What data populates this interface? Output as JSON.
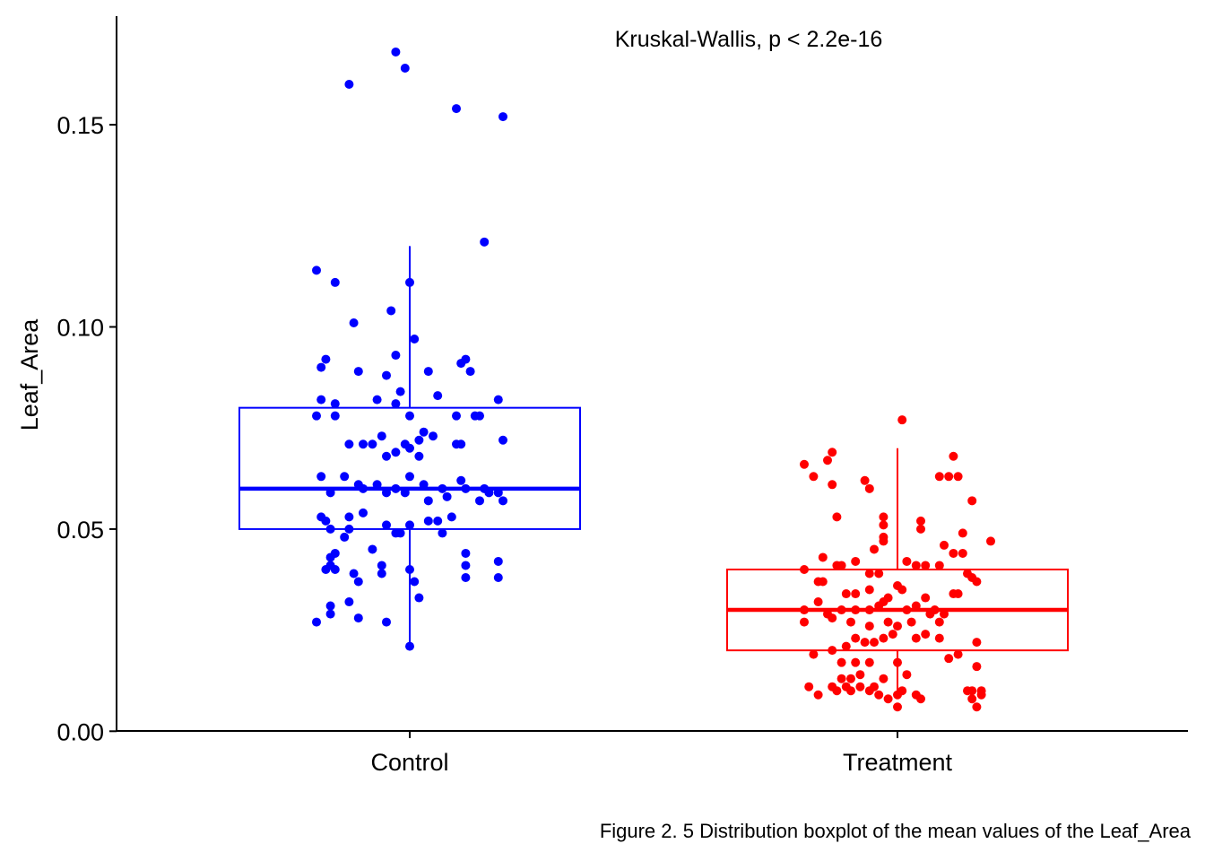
{
  "chart_data": {
    "type": "scatter",
    "subtype": "boxplot-with-jitter",
    "ylabel": "Leaf_Area",
    "xlabel": "",
    "ylim": [
      0.0,
      0.178
    ],
    "y_ticks": [
      0.0,
      0.05,
      0.1,
      0.15
    ],
    "y_tick_labels": [
      "0.00",
      "0.05",
      "0.10",
      "0.15"
    ],
    "categories": [
      "Control",
      "Treatment"
    ],
    "grid": false,
    "legend": "none",
    "annotation": "Kruskal-Wallis, p < 2.2e-16",
    "groups": [
      {
        "category": "Control",
        "color": "#0000FF",
        "box": {
          "whisker_low": 0.021,
          "q1": 0.05,
          "median": 0.06,
          "q3": 0.08,
          "whisker_high": 0.12
        },
        "points": [
          {
            "x": -0.2,
            "y": 0.114
          },
          {
            "x": -0.16,
            "y": 0.111
          },
          {
            "x": -0.12,
            "y": 0.101
          },
          {
            "x": 0.0,
            "y": 0.111
          },
          {
            "x": -0.04,
            "y": 0.104
          },
          {
            "x": -0.18,
            "y": 0.092
          },
          {
            "x": -0.19,
            "y": 0.09
          },
          {
            "x": -0.11,
            "y": 0.089
          },
          {
            "x": -0.05,
            "y": 0.088
          },
          {
            "x": -0.03,
            "y": 0.093
          },
          {
            "x": 0.01,
            "y": 0.097
          },
          {
            "x": 0.04,
            "y": 0.089
          },
          {
            "x": 0.11,
            "y": 0.091
          },
          {
            "x": 0.13,
            "y": 0.089
          },
          {
            "x": 0.12,
            "y": 0.092
          },
          {
            "x": -0.19,
            "y": 0.082
          },
          {
            "x": -0.16,
            "y": 0.081
          },
          {
            "x": -0.2,
            "y": 0.078
          },
          {
            "x": -0.16,
            "y": 0.078
          },
          {
            "x": -0.07,
            "y": 0.082
          },
          {
            "x": -0.03,
            "y": 0.081
          },
          {
            "x": 0.0,
            "y": 0.078
          },
          {
            "x": -0.02,
            "y": 0.084
          },
          {
            "x": 0.06,
            "y": 0.083
          },
          {
            "x": 0.1,
            "y": 0.078
          },
          {
            "x": 0.14,
            "y": 0.078
          },
          {
            "x": 0.15,
            "y": 0.078
          },
          {
            "x": 0.19,
            "y": 0.082
          },
          {
            "x": -0.13,
            "y": 0.071
          },
          {
            "x": -0.1,
            "y": 0.071
          },
          {
            "x": -0.08,
            "y": 0.071
          },
          {
            "x": -0.06,
            "y": 0.073
          },
          {
            "x": -0.05,
            "y": 0.068
          },
          {
            "x": -0.03,
            "y": 0.069
          },
          {
            "x": -0.01,
            "y": 0.071
          },
          {
            "x": 0.02,
            "y": 0.072
          },
          {
            "x": 0.03,
            "y": 0.074
          },
          {
            "x": 0.05,
            "y": 0.073
          },
          {
            "x": 0.0,
            "y": 0.07
          },
          {
            "x": 0.02,
            "y": 0.068
          },
          {
            "x": 0.1,
            "y": 0.071
          },
          {
            "x": 0.11,
            "y": 0.071
          },
          {
            "x": 0.2,
            "y": 0.072
          },
          {
            "x": -0.19,
            "y": 0.063
          },
          {
            "x": -0.14,
            "y": 0.063
          },
          {
            "x": -0.11,
            "y": 0.061
          },
          {
            "x": -0.17,
            "y": 0.059
          },
          {
            "x": -0.1,
            "y": 0.06
          },
          {
            "x": -0.07,
            "y": 0.061
          },
          {
            "x": -0.05,
            "y": 0.059
          },
          {
            "x": -0.03,
            "y": 0.06
          },
          {
            "x": -0.01,
            "y": 0.059
          },
          {
            "x": 0.0,
            "y": 0.063
          },
          {
            "x": 0.03,
            "y": 0.061
          },
          {
            "x": 0.07,
            "y": 0.06
          },
          {
            "x": 0.08,
            "y": 0.058
          },
          {
            "x": 0.04,
            "y": 0.057
          },
          {
            "x": 0.11,
            "y": 0.062
          },
          {
            "x": 0.12,
            "y": 0.06
          },
          {
            "x": 0.16,
            "y": 0.06
          },
          {
            "x": 0.17,
            "y": 0.059
          },
          {
            "x": 0.19,
            "y": 0.059
          },
          {
            "x": 0.15,
            "y": 0.057
          },
          {
            "x": 0.2,
            "y": 0.057
          },
          {
            "x": -0.19,
            "y": 0.053
          },
          {
            "x": -0.18,
            "y": 0.052
          },
          {
            "x": -0.13,
            "y": 0.053
          },
          {
            "x": -0.1,
            "y": 0.054
          },
          {
            "x": -0.17,
            "y": 0.05
          },
          {
            "x": -0.13,
            "y": 0.05
          },
          {
            "x": -0.14,
            "y": 0.048
          },
          {
            "x": -0.05,
            "y": 0.051
          },
          {
            "x": -0.02,
            "y": 0.049
          },
          {
            "x": 0.0,
            "y": 0.051
          },
          {
            "x": -0.03,
            "y": 0.049
          },
          {
            "x": 0.04,
            "y": 0.052
          },
          {
            "x": 0.06,
            "y": 0.052
          },
          {
            "x": 0.07,
            "y": 0.049
          },
          {
            "x": 0.09,
            "y": 0.053
          },
          {
            "x": -0.17,
            "y": 0.043
          },
          {
            "x": -0.16,
            "y": 0.044
          },
          {
            "x": -0.17,
            "y": 0.041
          },
          {
            "x": -0.18,
            "y": 0.04
          },
          {
            "x": -0.16,
            "y": 0.04
          },
          {
            "x": -0.08,
            "y": 0.045
          },
          {
            "x": -0.06,
            "y": 0.041
          },
          {
            "x": 0.0,
            "y": 0.04
          },
          {
            "x": 0.12,
            "y": 0.044
          },
          {
            "x": 0.12,
            "y": 0.041
          },
          {
            "x": 0.19,
            "y": 0.042
          },
          {
            "x": -0.12,
            "y": 0.039
          },
          {
            "x": -0.11,
            "y": 0.037
          },
          {
            "x": -0.06,
            "y": 0.039
          },
          {
            "x": 0.01,
            "y": 0.037
          },
          {
            "x": 0.12,
            "y": 0.038
          },
          {
            "x": 0.19,
            "y": 0.038
          },
          {
            "x": -0.17,
            "y": 0.031
          },
          {
            "x": -0.13,
            "y": 0.032
          },
          {
            "x": -0.17,
            "y": 0.029
          },
          {
            "x": -0.2,
            "y": 0.027
          },
          {
            "x": -0.11,
            "y": 0.028
          },
          {
            "x": -0.05,
            "y": 0.027
          },
          {
            "x": 0.02,
            "y": 0.033
          },
          {
            "x": 0.0,
            "y": 0.021
          },
          {
            "x": -0.13,
            "y": 0.16
          },
          {
            "x": -0.03,
            "y": 0.168
          },
          {
            "x": -0.01,
            "y": 0.164
          },
          {
            "x": 0.1,
            "y": 0.154
          },
          {
            "x": 0.2,
            "y": 0.152
          },
          {
            "x": 0.16,
            "y": 0.121
          }
        ]
      },
      {
        "category": "Treatment",
        "color": "#FF0000",
        "box": {
          "whisker_low": 0.009,
          "q1": 0.02,
          "median": 0.03,
          "q3": 0.04,
          "whisker_high": 0.07
        },
        "points": [
          {
            "x": 0.01,
            "y": 0.077
          },
          {
            "x": -0.2,
            "y": 0.066
          },
          {
            "x": -0.15,
            "y": 0.067
          },
          {
            "x": -0.14,
            "y": 0.069
          },
          {
            "x": -0.18,
            "y": 0.063
          },
          {
            "x": -0.14,
            "y": 0.061
          },
          {
            "x": -0.07,
            "y": 0.062
          },
          {
            "x": -0.06,
            "y": 0.06
          },
          {
            "x": 0.12,
            "y": 0.068
          },
          {
            "x": 0.09,
            "y": 0.063
          },
          {
            "x": 0.11,
            "y": 0.063
          },
          {
            "x": 0.13,
            "y": 0.063
          },
          {
            "x": 0.16,
            "y": 0.057
          },
          {
            "x": -0.13,
            "y": 0.053
          },
          {
            "x": -0.03,
            "y": 0.053
          },
          {
            "x": -0.03,
            "y": 0.051
          },
          {
            "x": 0.05,
            "y": 0.052
          },
          {
            "x": 0.05,
            "y": 0.05
          },
          {
            "x": 0.14,
            "y": 0.049
          },
          {
            "x": 0.2,
            "y": 0.047
          },
          {
            "x": -0.03,
            "y": 0.047
          },
          {
            "x": -0.03,
            "y": 0.048
          },
          {
            "x": -0.05,
            "y": 0.045
          },
          {
            "x": 0.1,
            "y": 0.046
          },
          {
            "x": 0.14,
            "y": 0.044
          },
          {
            "x": -0.16,
            "y": 0.043
          },
          {
            "x": -0.13,
            "y": 0.041
          },
          {
            "x": -0.12,
            "y": 0.041
          },
          {
            "x": -0.09,
            "y": 0.042
          },
          {
            "x": -0.06,
            "y": 0.039
          },
          {
            "x": -0.04,
            "y": 0.039
          },
          {
            "x": 0.02,
            "y": 0.042
          },
          {
            "x": 0.04,
            "y": 0.041
          },
          {
            "x": 0.06,
            "y": 0.041
          },
          {
            "x": 0.09,
            "y": 0.041
          },
          {
            "x": 0.12,
            "y": 0.044
          },
          {
            "x": 0.15,
            "y": 0.039
          },
          {
            "x": 0.16,
            "y": 0.038
          },
          {
            "x": 0.17,
            "y": 0.037
          },
          {
            "x": -0.2,
            "y": 0.04
          },
          {
            "x": -0.17,
            "y": 0.037
          },
          {
            "x": -0.16,
            "y": 0.037
          },
          {
            "x": -0.11,
            "y": 0.034
          },
          {
            "x": -0.09,
            "y": 0.034
          },
          {
            "x": -0.06,
            "y": 0.035
          },
          {
            "x": 0.0,
            "y": 0.036
          },
          {
            "x": 0.01,
            "y": 0.035
          },
          {
            "x": -0.17,
            "y": 0.032
          },
          {
            "x": -0.2,
            "y": 0.03
          },
          {
            "x": -0.15,
            "y": 0.029
          },
          {
            "x": -0.12,
            "y": 0.03
          },
          {
            "x": -0.09,
            "y": 0.03
          },
          {
            "x": -0.06,
            "y": 0.03
          },
          {
            "x": -0.04,
            "y": 0.031
          },
          {
            "x": -0.03,
            "y": 0.032
          },
          {
            "x": -0.02,
            "y": 0.033
          },
          {
            "x": 0.02,
            "y": 0.03
          },
          {
            "x": 0.04,
            "y": 0.031
          },
          {
            "x": 0.06,
            "y": 0.033
          },
          {
            "x": 0.08,
            "y": 0.03
          },
          {
            "x": 0.1,
            "y": 0.029
          },
          {
            "x": 0.12,
            "y": 0.034
          },
          {
            "x": 0.13,
            "y": 0.034
          },
          {
            "x": -0.2,
            "y": 0.027
          },
          {
            "x": -0.14,
            "y": 0.028
          },
          {
            "x": -0.1,
            "y": 0.027
          },
          {
            "x": -0.06,
            "y": 0.026
          },
          {
            "x": -0.02,
            "y": 0.027
          },
          {
            "x": 0.0,
            "y": 0.026
          },
          {
            "x": 0.03,
            "y": 0.027
          },
          {
            "x": 0.07,
            "y": 0.029
          },
          {
            "x": 0.09,
            "y": 0.027
          },
          {
            "x": -0.09,
            "y": 0.023
          },
          {
            "x": -0.07,
            "y": 0.022
          },
          {
            "x": -0.05,
            "y": 0.022
          },
          {
            "x": -0.03,
            "y": 0.023
          },
          {
            "x": -0.01,
            "y": 0.024
          },
          {
            "x": 0.04,
            "y": 0.023
          },
          {
            "x": 0.06,
            "y": 0.024
          },
          {
            "x": 0.09,
            "y": 0.023
          },
          {
            "x": -0.18,
            "y": 0.019
          },
          {
            "x": -0.14,
            "y": 0.02
          },
          {
            "x": -0.11,
            "y": 0.021
          },
          {
            "x": 0.13,
            "y": 0.019
          },
          {
            "x": 0.17,
            "y": 0.022
          },
          {
            "x": -0.12,
            "y": 0.017
          },
          {
            "x": -0.09,
            "y": 0.017
          },
          {
            "x": -0.06,
            "y": 0.017
          },
          {
            "x": 0.0,
            "y": 0.017
          },
          {
            "x": 0.11,
            "y": 0.018
          },
          {
            "x": -0.12,
            "y": 0.013
          },
          {
            "x": -0.1,
            "y": 0.013
          },
          {
            "x": -0.08,
            "y": 0.014
          },
          {
            "x": -0.03,
            "y": 0.013
          },
          {
            "x": 0.02,
            "y": 0.014
          },
          {
            "x": 0.17,
            "y": 0.016
          },
          {
            "x": -0.19,
            "y": 0.011
          },
          {
            "x": -0.14,
            "y": 0.011
          },
          {
            "x": -0.11,
            "y": 0.011
          },
          {
            "x": -0.08,
            "y": 0.011
          },
          {
            "x": -0.05,
            "y": 0.011
          },
          {
            "x": -0.17,
            "y": 0.009
          },
          {
            "x": -0.13,
            "y": 0.01
          },
          {
            "x": -0.1,
            "y": 0.01
          },
          {
            "x": -0.06,
            "y": 0.01
          },
          {
            "x": -0.04,
            "y": 0.009
          },
          {
            "x": -0.02,
            "y": 0.008
          },
          {
            "x": 0.0,
            "y": 0.009
          },
          {
            "x": 0.01,
            "y": 0.01
          },
          {
            "x": 0.04,
            "y": 0.009
          },
          {
            "x": 0.05,
            "y": 0.008
          },
          {
            "x": 0.0,
            "y": 0.006
          },
          {
            "x": 0.15,
            "y": 0.01
          },
          {
            "x": 0.16,
            "y": 0.01
          },
          {
            "x": 0.18,
            "y": 0.01
          },
          {
            "x": 0.18,
            "y": 0.009
          },
          {
            "x": 0.16,
            "y": 0.008
          },
          {
            "x": 0.17,
            "y": 0.006
          }
        ]
      }
    ]
  },
  "caption": "Figure 2. 5 Distribution boxplot of the mean values of the Leaf_Area"
}
